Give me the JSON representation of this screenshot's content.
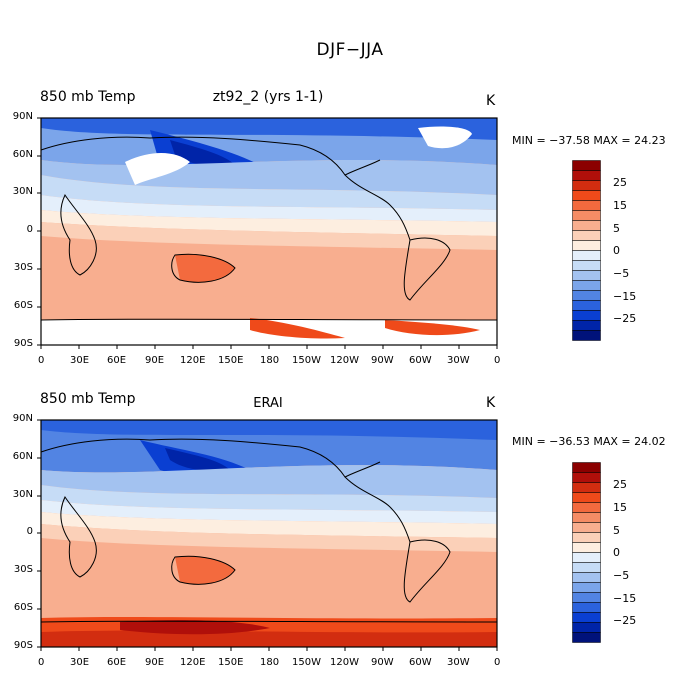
{
  "figure": {
    "title": "DJF−JJA"
  },
  "colorbar": {
    "colors": [
      "#8b0000",
      "#b00f0a",
      "#d22d10",
      "#ef4a1a",
      "#f36a3e",
      "#f58c65",
      "#f8ae8f",
      "#fbd0b8",
      "#fdeee0",
      "#e4effb",
      "#c6dcf6",
      "#a3c2f0",
      "#7ba5ea",
      "#5284e3",
      "#2b62dd",
      "#0a3fd2",
      "#0024a8",
      "#00127a"
    ],
    "labels": [
      "25",
      "15",
      "5",
      "0",
      "−5",
      "−15",
      "−25"
    ]
  },
  "axes": {
    "x_ticks": [
      "0",
      "30E",
      "60E",
      "90E",
      "120E",
      "150E",
      "180",
      "150W",
      "120W",
      "90W",
      "60W",
      "30W",
      "0"
    ],
    "y_ticks": [
      "90N",
      "60N",
      "30N",
      "0",
      "30S",
      "60S",
      "90S"
    ]
  },
  "panels": [
    {
      "left_label": "850 mb Temp",
      "center_label": "zt92_2 (yrs 1-1)",
      "right_label": "K",
      "stats": "MIN = −37.58  MAX =  24.23"
    },
    {
      "left_label": "850 mb Temp",
      "center_label": "ERAI",
      "right_label": "K",
      "stats": "MIN = −36.53  MAX =  24.02"
    }
  ]
}
